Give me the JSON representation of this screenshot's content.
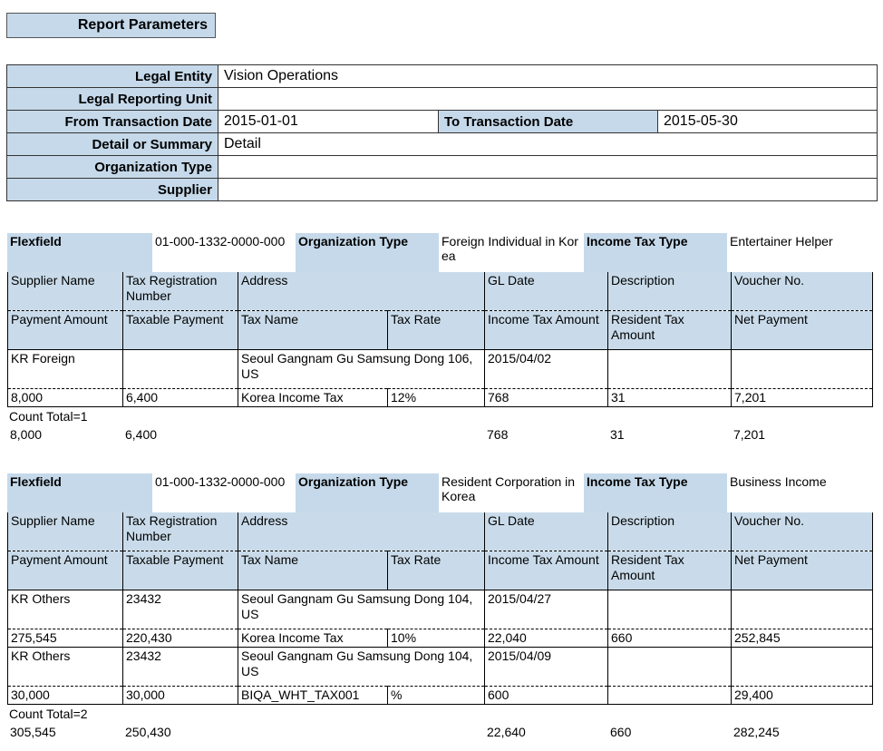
{
  "parameters": {
    "title": "Report Parameters",
    "rows": [
      {
        "label": "Legal Entity",
        "value": "Vision Operations"
      },
      {
        "label": "Legal Reporting Unit"
      },
      {
        "label": "From Transaction Date",
        "value": "2015-01-01",
        "label2": "To Transaction Date",
        "value2": "2015-05-30"
      },
      {
        "label": "Detail or Summary",
        "value": "Detail"
      },
      {
        "label": "Organization Type"
      },
      {
        "label": "Supplier"
      }
    ]
  },
  "group_labels": {
    "flexfield": "Flexfield",
    "organization_type": "Organization Type",
    "income_tax_type": "Income Tax Type"
  },
  "columns": {
    "line1": [
      "Supplier Name",
      "Tax Registration Number",
      "Address",
      "GL Date",
      "Description",
      "Voucher No."
    ],
    "line2": [
      "Payment Amount",
      "Taxable Payment",
      "Tax Name",
      "Tax Rate",
      "Income Tax Amount",
      "Resident Tax Amount",
      "Net Payment"
    ]
  },
  "groups": [
    {
      "flexfield": "01-000-1332-0000-000",
      "organization_type": "Foreign Individual in Korea",
      "income_tax_type": "Entertainer Helper",
      "records": [
        {
          "line1": [
            "KR Foreign",
            null,
            "Seoul Gangnam Gu Samsung Dong 106, US",
            "2015/04/02",
            null,
            null
          ],
          "line2": [
            "8,000",
            "6,400",
            "Korea Income Tax",
            "12%",
            "768",
            "31",
            "7,201"
          ]
        }
      ],
      "count_total": "Count Total=1",
      "totals": [
        "8,000",
        "6,400",
        null,
        null,
        "768",
        "31",
        "7,201"
      ]
    },
    {
      "flexfield": "01-000-1332-0000-000",
      "organization_type": "Resident Corporation in Korea",
      "income_tax_type": "Business Income",
      "records": [
        {
          "line1": [
            "KR Others",
            "23432",
            "Seoul Gangnam Gu Samsung Dong 104, US",
            "2015/04/27",
            null,
            null
          ],
          "line2": [
            "275,545",
            "220,430",
            "Korea Income Tax",
            "10%",
            "22,040",
            "660",
            "252,845"
          ]
        },
        {
          "line1": [
            "KR Others",
            "23432",
            "Seoul Gangnam Gu Samsung Dong 104, US",
            "2015/04/09",
            null,
            null
          ],
          "line2": [
            "30,000",
            "30,000",
            "BIQA_WHT_TAX001",
            "%",
            "600",
            null,
            "29,400"
          ]
        }
      ],
      "count_total": "Count Total=2",
      "totals": [
        "305,545",
        "250,430",
        null,
        null,
        "22,640",
        "660",
        "282,245"
      ]
    }
  ]
}
